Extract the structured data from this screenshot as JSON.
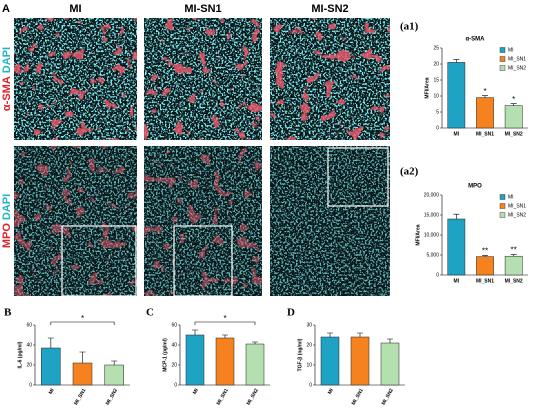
{
  "figure": {
    "panel": "A",
    "columns": [
      "MI",
      "MI-SN1",
      "MI-SN2"
    ],
    "rows": [
      {
        "marker": "α-SMA",
        "stain": "DAPI"
      },
      {
        "marker": "MPO",
        "stain": "DAPI"
      }
    ]
  },
  "chart_data": [
    {
      "type": "bar",
      "panel": "(a1)",
      "title": "α-SMA",
      "ylabel": "MFI/Area",
      "categories": [
        "MI",
        "MI_SN1",
        "MI_SN2"
      ],
      "values": [
        20.5,
        9.5,
        7
      ],
      "errors": [
        0.9,
        0.6,
        0.6
      ],
      "colors": [
        "#1ea3c4",
        "#f5821f",
        "#b3e0ae"
      ],
      "value_annotations": [
        null,
        "*",
        "*"
      ],
      "ylim": [
        0,
        25
      ],
      "yticks": [
        0,
        5,
        10,
        15,
        20,
        25
      ],
      "legend": "right"
    },
    {
      "type": "bar",
      "panel": "(a2)",
      "title": "MPO",
      "ylabel": "MFI/Area",
      "categories": [
        "MI",
        "MI_SN1",
        "MI_SN2"
      ],
      "values": [
        14000,
        4600,
        4700
      ],
      "errors": [
        1200,
        300,
        400
      ],
      "colors": [
        "#1ea3c4",
        "#f5821f",
        "#b3e0ae"
      ],
      "value_annotations": [
        null,
        "**",
        "**"
      ],
      "ylim": [
        0,
        20000
      ],
      "yticks": [
        0,
        {
          "value": 5000,
          "label": "5,000"
        },
        {
          "value": 10000,
          "label": "10,000"
        },
        {
          "value": 15000,
          "label": "15,000"
        },
        {
          "value": 20000,
          "label": "20,000"
        }
      ],
      "legend": "right"
    },
    {
      "type": "bar",
      "panel": "B",
      "ylabel": "IL-6 (pg/ml)",
      "categories": [
        "MI",
        "MI_SN1",
        "MI_SN2"
      ],
      "values": [
        37,
        22,
        20
      ],
      "errors": [
        10,
        11,
        4
      ],
      "colors": [
        "#1ea3c4",
        "#f5821f",
        "#b3e0ae"
      ],
      "brackets": [
        {
          "label": "*",
          "from": "MI",
          "to": "MI_SN2"
        }
      ],
      "ylim": [
        0,
        60
      ],
      "yticks": [
        0,
        20,
        40,
        60
      ]
    },
    {
      "type": "bar",
      "panel": "C",
      "ylabel": "MCP-1 (pg/ml)",
      "categories": [
        "MI",
        "MI_SN1",
        "MI_SN2"
      ],
      "values": [
        50,
        47,
        41
      ],
      "errors": [
        5,
        3,
        2
      ],
      "colors": [
        "#1ea3c4",
        "#f5821f",
        "#b3e0ae"
      ],
      "brackets": [
        {
          "label": "*",
          "from": "MI",
          "to": "MI_SN2"
        }
      ],
      "ylim": [
        0,
        60
      ],
      "yticks": [
        0,
        20,
        40,
        60
      ]
    },
    {
      "type": "bar",
      "panel": "D",
      "ylabel": "TGF-β (ng/ml)",
      "categories": [
        "MI",
        "MI_SN1",
        "MI_SN2"
      ],
      "values": [
        24,
        24,
        21
      ],
      "errors": [
        2,
        2,
        2
      ],
      "colors": [
        "#1ea3c4",
        "#f5821f",
        "#b3e0ae"
      ],
      "ylim": [
        0,
        30
      ],
      "yticks": [
        0,
        10,
        20,
        30
      ]
    }
  ]
}
